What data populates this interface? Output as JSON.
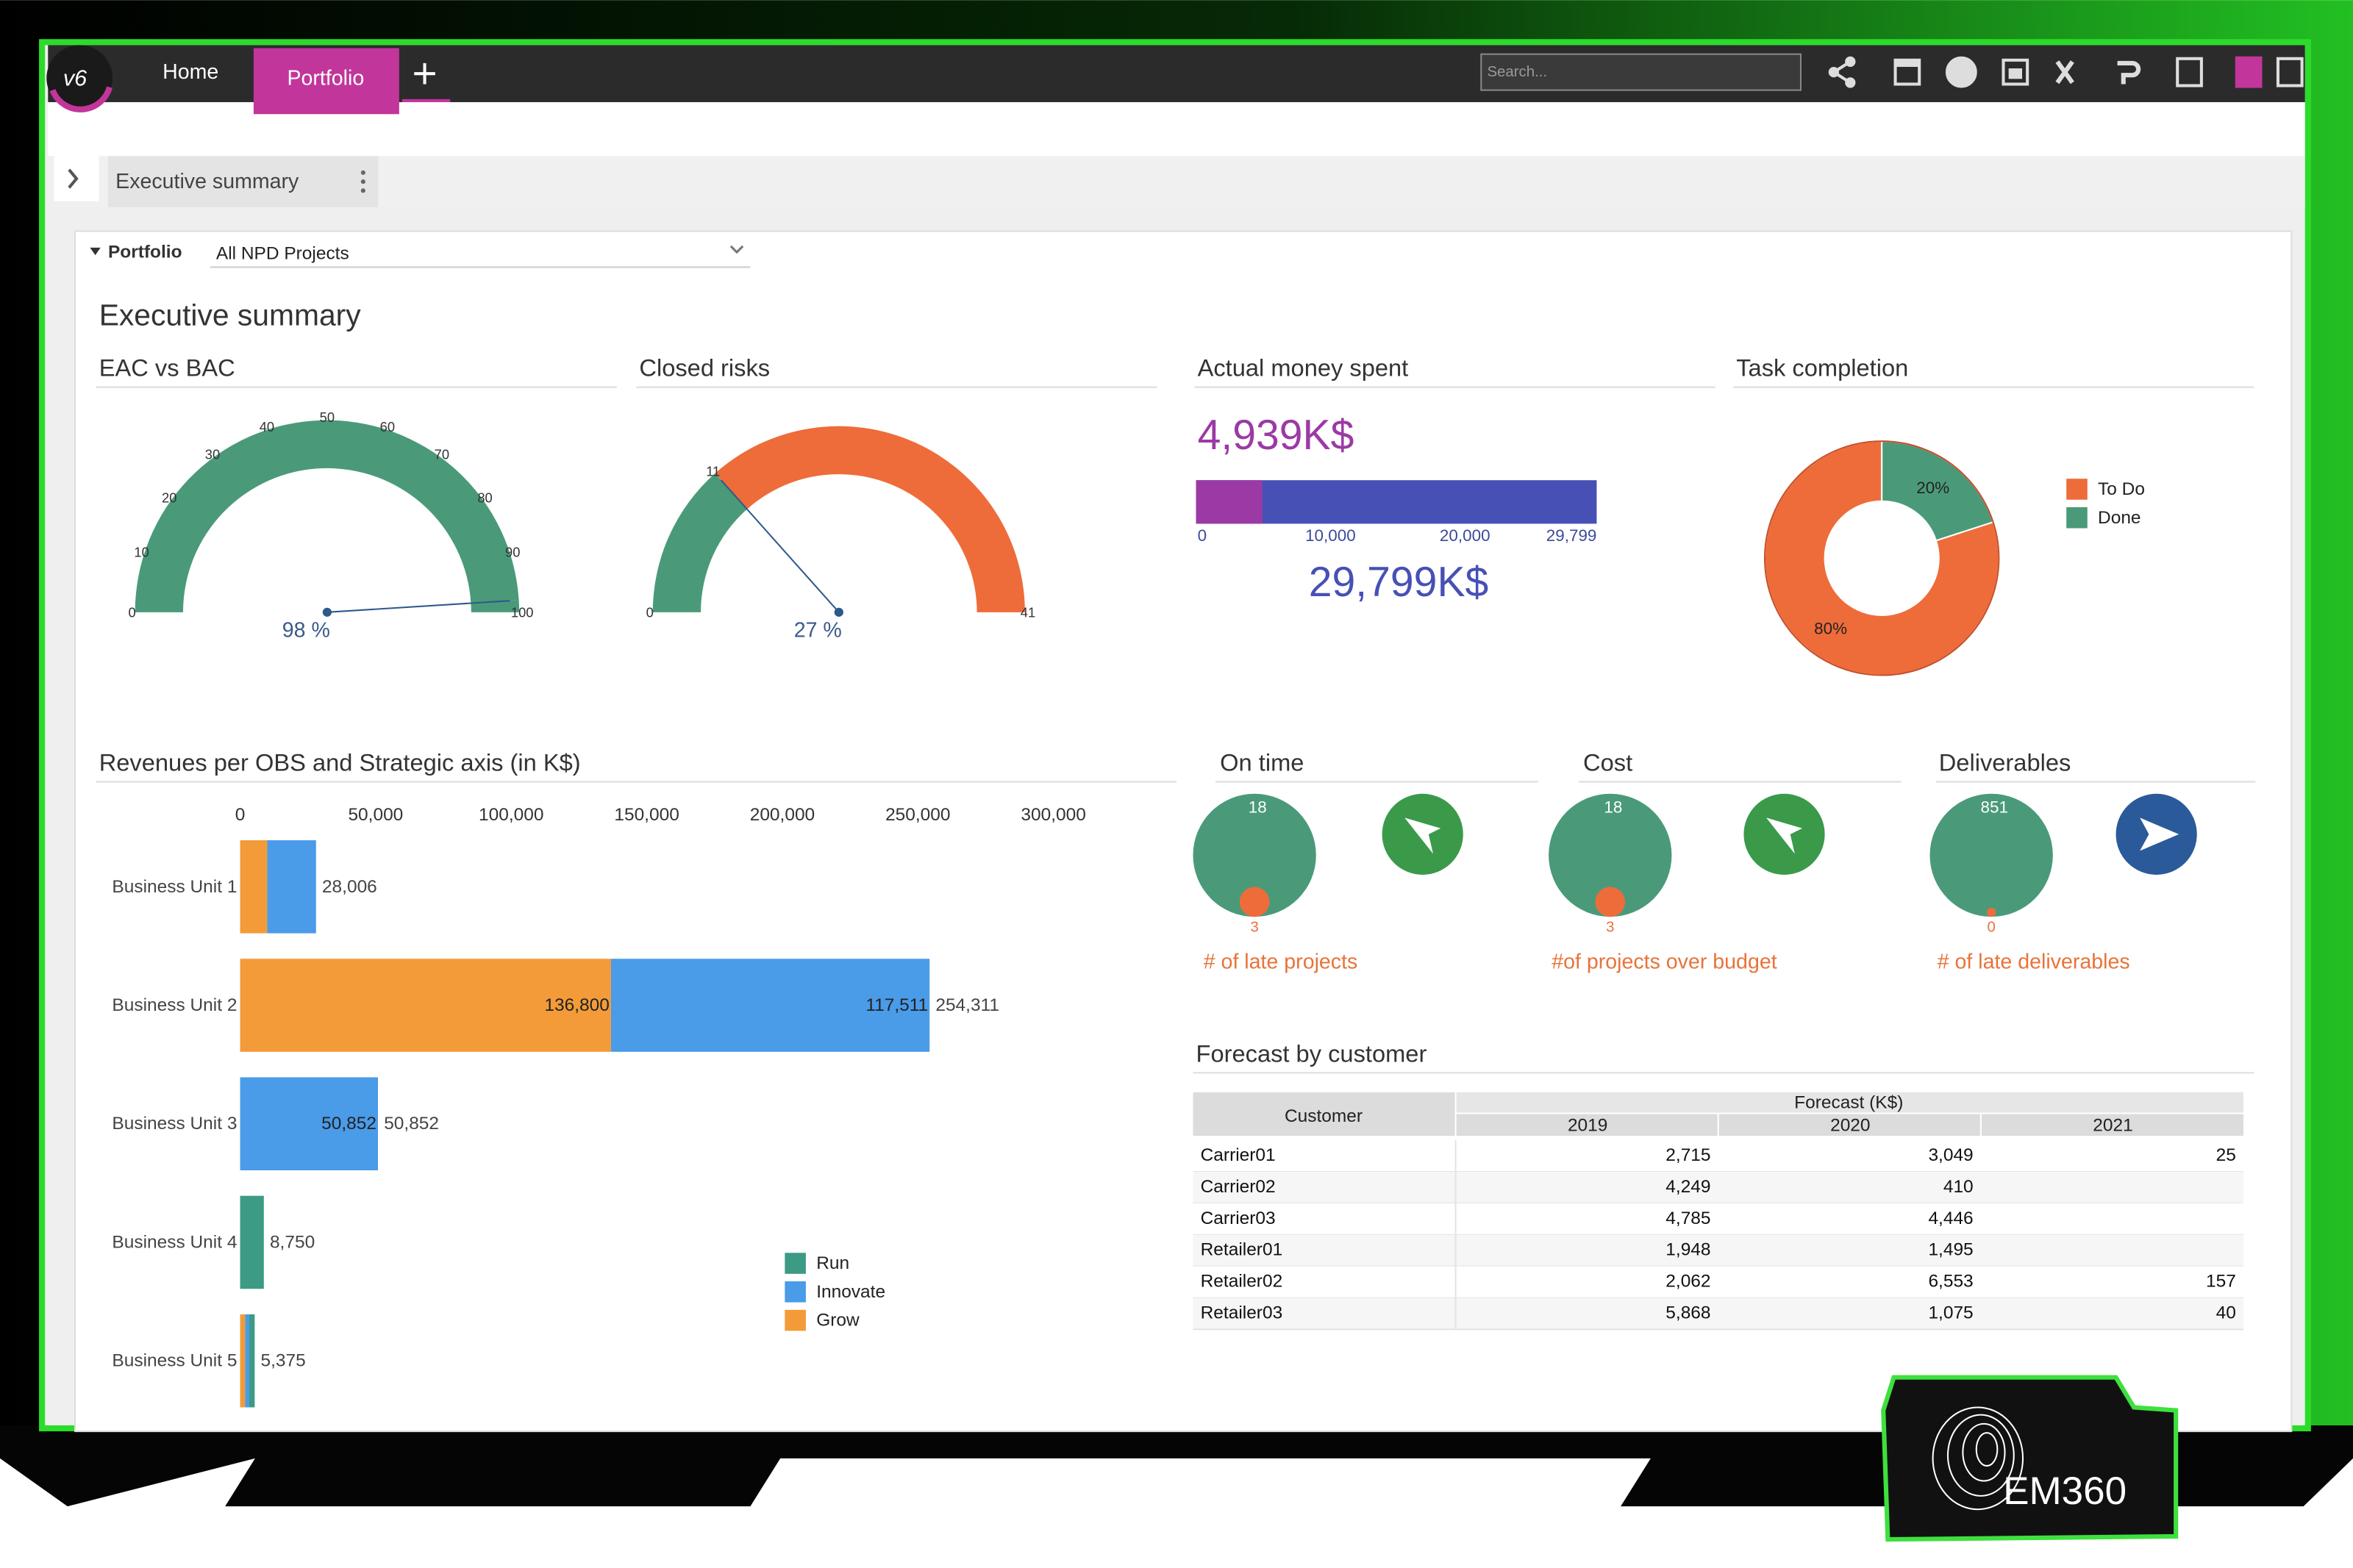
{
  "nav": {
    "logo": "v6",
    "tabs": [
      "Home",
      "Portfolio"
    ],
    "search_placeholder": "Search..."
  },
  "breadcrumb": "Executive summary",
  "filter": {
    "label": "Portfolio",
    "value": "All NPD Projects"
  },
  "title": "Executive summary",
  "chart_data": [
    {
      "type": "gauge",
      "title": "EAC vs BAC",
      "ylim": [
        0,
        100
      ],
      "yticks": [
        0,
        10,
        20,
        30,
        40,
        50,
        60,
        70,
        80,
        90,
        100
      ],
      "value": 98,
      "caption": "98 %",
      "colors": [
        "#4a9a7a",
        "#4a9a7a"
      ]
    },
    {
      "type": "gauge",
      "title": "Closed risks",
      "ylim": [
        0,
        41
      ],
      "yticks": [
        0,
        11,
        41
      ],
      "value": 11,
      "caption": "27 %",
      "colors": [
        "#4a9a7a",
        "#ee6c3a"
      ]
    },
    {
      "type": "progress",
      "title": "Actual money spent",
      "values": [
        4939,
        29799
      ],
      "value_labels": [
        "4,939K$",
        "29,799K$"
      ],
      "colors": [
        "#9b3aa5",
        "#4650b5"
      ],
      "xlim": [
        0,
        29799
      ],
      "xticks": [
        0,
        {
          "value": 10000,
          "label": "10,000"
        },
        {
          "value": 20000,
          "label": "20,000"
        },
        {
          "value": 29799,
          "label": "29,799"
        }
      ]
    },
    {
      "type": "pie",
      "title": "Task completion",
      "donut": true,
      "categories": [
        "To Do",
        "Done"
      ],
      "values": [
        80,
        20
      ],
      "value_labels": [
        "80%",
        "20%"
      ],
      "colors": [
        "#ee6c3a",
        "#4a9a7a"
      ]
    },
    {
      "type": "hbar",
      "stacked": true,
      "title": "Revenues per OBS and Strategic axis (in K$)",
      "categories": [
        "Business Unit 1",
        "Business Unit 2",
        "Business Unit 3",
        "Business Unit 4",
        "Business Unit 5"
      ],
      "series": [
        {
          "name": "Run",
          "color": "#3d9a84",
          "values": [
            null,
            null,
            null,
            8750,
            2000
          ],
          "value_labels": [
            null,
            null,
            null,
            null,
            null
          ]
        },
        {
          "name": "Innovate",
          "color": "#4a9be8",
          "values": [
            18006,
            117511,
            50852,
            null,
            1500
          ],
          "value_labels": [
            null,
            "117,511",
            "50,852",
            null,
            null
          ]
        },
        {
          "name": "Grow",
          "color": "#f29b38",
          "values": [
            10000,
            136800,
            null,
            null,
            1875
          ],
          "value_labels": [
            null,
            "136,800",
            null,
            null,
            null
          ]
        }
      ],
      "totals": [
        28006,
        254311,
        50852,
        8750,
        5375
      ],
      "total_labels": [
        "28,006",
        "254,311",
        "50,852",
        "8,750",
        "5,375"
      ],
      "xlim": [
        0,
        300000
      ],
      "xticks": [
        0,
        {
          "value": 50000,
          "label": "50,000"
        },
        {
          "value": 100000,
          "label": "100,000"
        },
        {
          "value": 150000,
          "label": "150,000"
        },
        {
          "value": 200000,
          "label": "200,000"
        },
        {
          "value": 250000,
          "label": "250,000"
        },
        {
          "value": 300000,
          "label": "300,000"
        }
      ],
      "legend": "lower-right"
    }
  ],
  "kpis": [
    {
      "title": "On time",
      "total": 18,
      "late": 3,
      "caption": "# of late projects"
    },
    {
      "title": "Cost",
      "total": 18,
      "late": 3,
      "caption": "#of projects over budget"
    },
    {
      "title": "Deliverables",
      "total": 851,
      "late": 0,
      "caption": "# of late deliverables"
    }
  ],
  "table": {
    "title": "Forecast by customer",
    "group_header": "Forecast (K$)",
    "columns": [
      "Customer",
      "2019",
      "2020",
      "2021"
    ],
    "rows": [
      [
        "Carrier01",
        "2,715",
        "3,049",
        "25"
      ],
      [
        "Carrier02",
        "4,249",
        "410",
        null
      ],
      [
        "Carrier03",
        "4,785",
        "4,446",
        null
      ],
      [
        "Retailer01",
        "1,948",
        "1,495",
        null
      ],
      [
        "Retailer02",
        "2,062",
        "6,553",
        "157"
      ],
      [
        "Retailer03",
        "5,868",
        "1,075",
        "40"
      ]
    ]
  },
  "branding": "EM360"
}
